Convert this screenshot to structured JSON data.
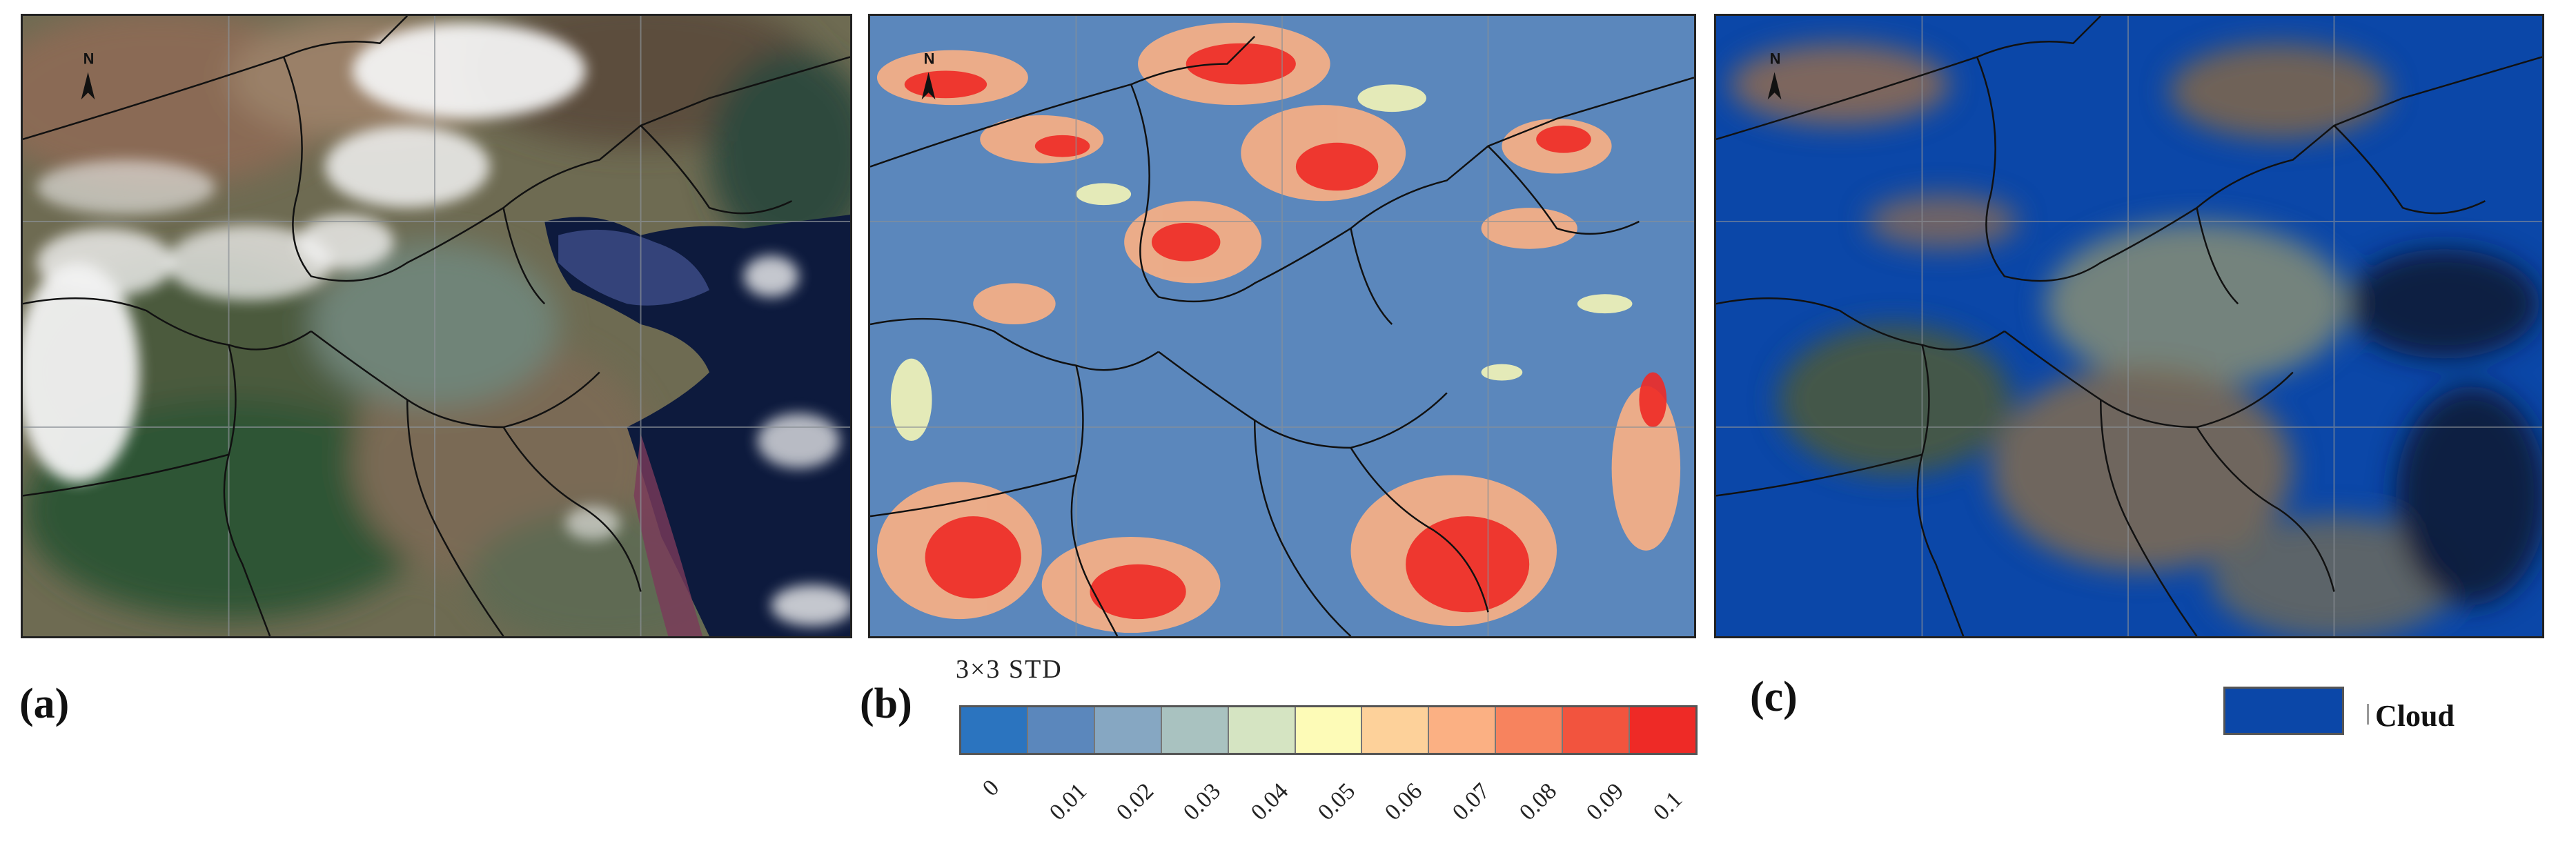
{
  "panels": [
    {
      "id": "a",
      "label": "(a)"
    },
    {
      "id": "b",
      "label": "(b)"
    },
    {
      "id": "c",
      "label": "(c)"
    }
  ],
  "north_arrow": "N",
  "std_legend": {
    "title": "3×3  STD",
    "ticks": [
      "0",
      "0.01",
      "0.02",
      "0.03",
      "0.04",
      "0.05",
      "0.06",
      "0.07",
      "0.08",
      "0.09",
      "0.1"
    ],
    "colors": [
      "#2b74bf",
      "#5b87bc",
      "#86a7c2",
      "#a9c2c0",
      "#d5e4c2",
      "#fdfbb7",
      "#fdd19a",
      "#fbb083",
      "#f7835e",
      "#f2543e",
      "#ee2a26"
    ]
  },
  "cloud_legend": {
    "label": "Cloud",
    "color": "#0b47a8"
  }
}
